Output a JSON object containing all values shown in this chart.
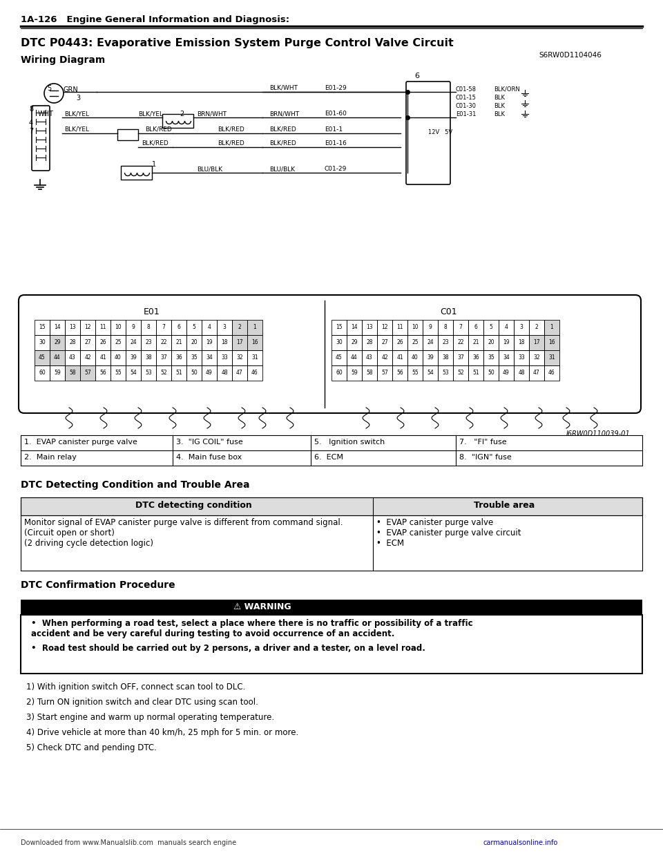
{
  "page_header": "1A-126   Engine General Information and Diagnosis:",
  "title": "DTC P0443: Evaporative Emission System Purge Control Valve Circuit",
  "code_ref": "S6RW0D1104046",
  "wiring_diagram_label": "Wiring Diagram",
  "legend_items": [
    [
      "1.  EVAP canister purge valve",
      "3.  \"IG COIL\" fuse",
      "5.   Ignition switch",
      "7.   \"FI\" fuse"
    ],
    [
      "2.  Main relay",
      "4.  Main fuse box",
      "6.  ECM",
      "8.  \"IGN\" fuse"
    ]
  ],
  "dtc_section_title": "DTC Detecting Condition and Trouble Area",
  "dtc_col1_header": "DTC detecting condition",
  "dtc_col2_header": "Trouble area",
  "dtc_col1_content": "Monitor signal of EVAP canister purge valve is different from command signal.\n(Circuit open or short)\n(2 driving cycle detection logic)",
  "dtc_col2_content": "•  EVAP canister purge valve\n•  EVAP canister purge valve circuit\n•  ECM",
  "confirmation_title": "DTC Confirmation Procedure",
  "warning_label": "⚠ WARNING",
  "warning_bullets": [
    "When performing a road test, select a place where there is no traffic or possibility of a traffic\naccident and be very careful during testing to avoid occurrence of an accident.",
    "Road test should be carried out by 2 persons, a driver and a tester, on a level road."
  ],
  "steps": [
    "1) With ignition switch OFF, connect scan tool to DLC.",
    "2) Turn ON ignition switch and clear DTC using scan tool.",
    "3) Start engine and warm up normal operating temperature.",
    "4) Drive vehicle at more than 40 km/h, 25 mph for 5 min. or more.",
    "5) Check DTC and pending DTC."
  ],
  "footer_left": "Downloaded from www.Manualslib.com  manuals search engine",
  "footer_right": "carmanualsonline.info",
  "diagram_image_note": "I6RW0D110039-01",
  "bg_color": "#ffffff",
  "text_color": "#000000",
  "line_color": "#000000",
  "header_line_color": "#000000",
  "warning_bg": "#000000",
  "warning_text_color": "#ffffff"
}
